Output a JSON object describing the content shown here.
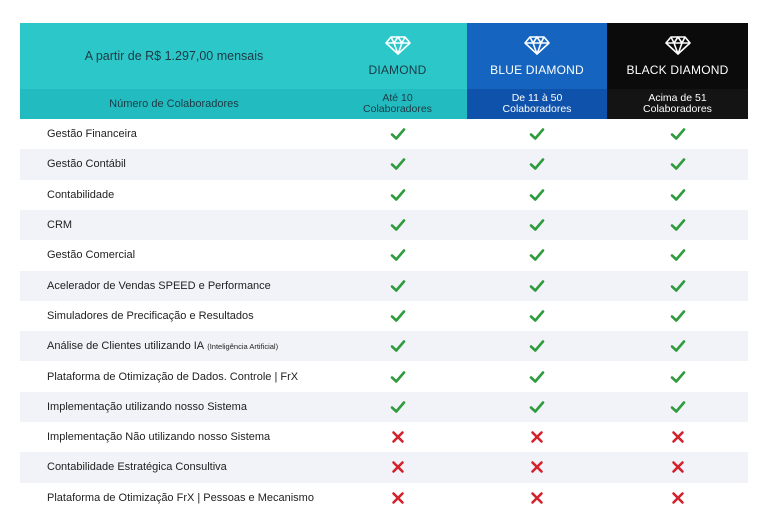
{
  "header": {
    "price": "A partir de R$ 1.297,00 mensais",
    "subheader_label": "Número de Colaboradores",
    "plans": [
      {
        "name": "DIAMOND",
        "collaborators": [
          "Até 10",
          "Colaboradores"
        ]
      },
      {
        "name": "BLUE DIAMOND",
        "collaborators": [
          "De 11 à 50",
          "Colaboradores"
        ]
      },
      {
        "name": "BLACK DIAMOND",
        "collaborators": [
          "Acima de 51",
          "Colaboradores"
        ]
      }
    ]
  },
  "features": [
    {
      "name": "Gestão Financeira",
      "included": [
        true,
        true,
        true
      ]
    },
    {
      "name": "Gestão Contábil",
      "included": [
        true,
        true,
        true
      ]
    },
    {
      "name": "Contabilidade",
      "included": [
        true,
        true,
        true
      ]
    },
    {
      "name": "CRM",
      "included": [
        true,
        true,
        true
      ]
    },
    {
      "name": "Gestão Comercial",
      "included": [
        true,
        true,
        true
      ]
    },
    {
      "name": "Acelerador de Vendas SPEED e Performance",
      "included": [
        true,
        true,
        true
      ]
    },
    {
      "name": "Simuladores de Precificação e Resultados",
      "included": [
        true,
        true,
        true
      ]
    },
    {
      "name": "Análise de Clientes utilizando IA",
      "note": "(Inteligência Artificial)",
      "included": [
        true,
        true,
        true
      ]
    },
    {
      "name": "Plataforma de Otimização de Dados. Controle | FrX",
      "included": [
        true,
        true,
        true
      ]
    },
    {
      "name": "Implementação utilizando nosso Sistema",
      "included": [
        true,
        true,
        true
      ]
    },
    {
      "name": "Implementação Não utilizando nosso Sistema",
      "included": [
        false,
        false,
        false
      ]
    },
    {
      "name": "Contabilidade Estratégica Consultiva",
      "included": [
        false,
        false,
        false
      ]
    },
    {
      "name": "Plataforma de Otimização FrX | Pessoas e Mecanismo",
      "included": [
        false,
        false,
        false
      ]
    }
  ]
}
